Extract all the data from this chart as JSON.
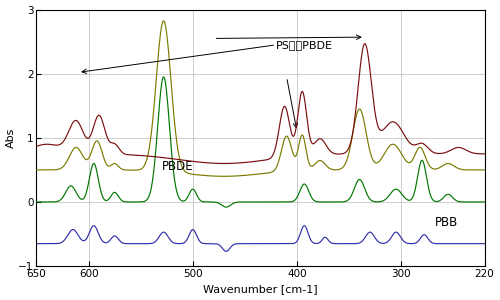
{
  "title": "",
  "xlabel": "Wavenumber [cm-1]",
  "ylabel": "Abs",
  "xlim": [
    650,
    220
  ],
  "ylim": [
    -1,
    3
  ],
  "yticks": [
    -1,
    0,
    1,
    2,
    3
  ],
  "xticks": [
    650,
    600,
    500,
    400,
    300,
    220
  ],
  "colors": {
    "dark_red": "#7B1010",
    "olive": "#7B7B00",
    "green": "#007700",
    "purple": "#3030AA"
  },
  "bg_color": "#ffffff",
  "grid_color": "#bbbbbb",
  "annotations": {
    "ps_pbde": "PS中のPBDE",
    "pbde": "PBDE",
    "pbb": "PBB"
  }
}
